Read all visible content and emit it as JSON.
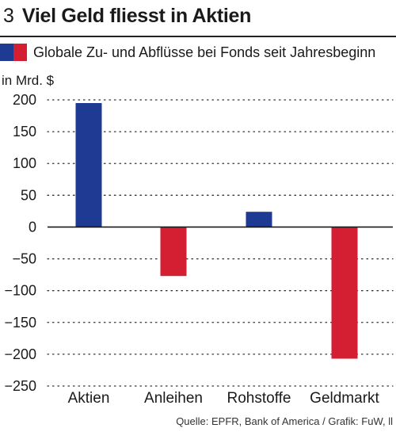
{
  "figure": {
    "number": "3",
    "title": "Viel Geld fliesst in Aktien"
  },
  "legend": {
    "text": "Globale Zu- und Abflüsse bei Fonds seit Jahresbeginn",
    "colors": [
      "#1f3a93",
      "#d41f33"
    ]
  },
  "unit_label": "in Mrd. $",
  "source": "Quelle: EPFR, Bank of America / Grafik: FuW, ll",
  "chart_data": {
    "type": "bar",
    "categories": [
      "Aktien",
      "Anleihen",
      "Rohstoffe",
      "Geldmarkt"
    ],
    "values": [
      195,
      -77,
      24,
      -207
    ],
    "ylim": [
      -250,
      200
    ],
    "yticks": [
      200,
      150,
      100,
      50,
      0,
      -50,
      -100,
      -150,
      -200,
      -250
    ],
    "ylabel": "in Mrd. $",
    "grid": true,
    "positive_color": "#1f3a93",
    "negative_color": "#d41f33"
  }
}
